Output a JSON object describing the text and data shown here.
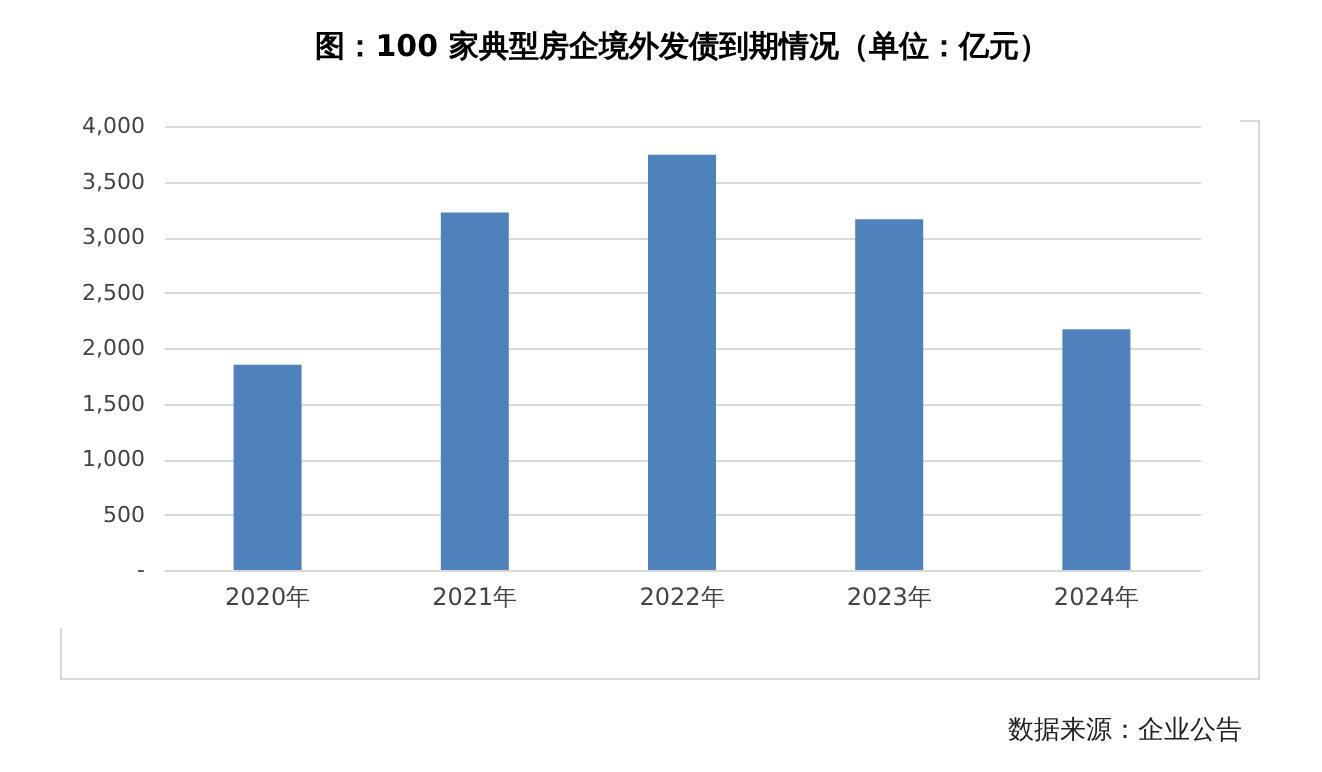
{
  "chart_data": {
    "type": "bar",
    "title": "图：100 家典型房企境外发债到期情况（单位：亿元）",
    "categories": [
      "2020年",
      "2021年",
      "2022年",
      "2023年",
      "2024年"
    ],
    "values": [
      1850,
      3220,
      3740,
      3160,
      2170
    ],
    "color": "#4f81bd",
    "ylim": [
      0,
      4000
    ],
    "yticks": [
      {
        "value": 0,
        "label": "-"
      },
      {
        "value": 500,
        "label": "500"
      },
      {
        "value": 1000,
        "label": "1,000"
      },
      {
        "value": 1500,
        "label": "1,500"
      },
      {
        "value": 2000,
        "label": "2,000"
      },
      {
        "value": 2500,
        "label": "2,500"
      },
      {
        "value": 3000,
        "label": "3,000"
      },
      {
        "value": 3500,
        "label": "3,500"
      },
      {
        "value": 4000,
        "label": "4,000"
      }
    ],
    "grid": "y",
    "annotations": [
      "数据来源：企业公告"
    ]
  }
}
